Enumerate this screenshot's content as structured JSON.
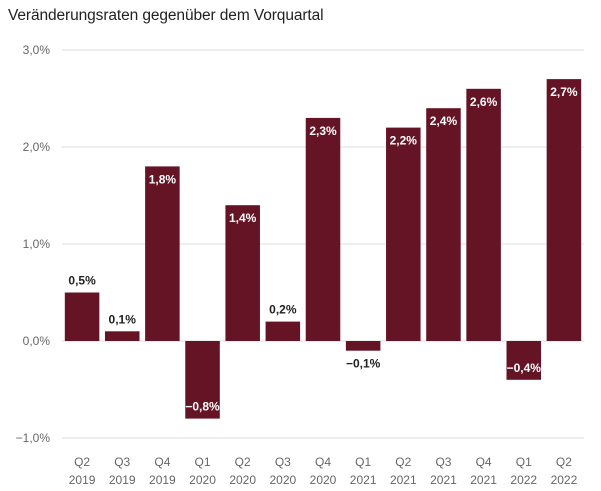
{
  "chart_data": {
    "type": "bar",
    "title": "Veränderungsraten gegenüber dem Vorquartal",
    "categories": [
      [
        "Q2",
        "2019"
      ],
      [
        "Q3",
        "2019"
      ],
      [
        "Q4",
        "2019"
      ],
      [
        "Q1",
        "2020"
      ],
      [
        "Q2",
        "2020"
      ],
      [
        "Q3",
        "2020"
      ],
      [
        "Q4",
        "2020"
      ],
      [
        "Q1",
        "2021"
      ],
      [
        "Q2",
        "2021"
      ],
      [
        "Q3",
        "2021"
      ],
      [
        "Q4",
        "2021"
      ],
      [
        "Q1",
        "2022"
      ],
      [
        "Q2",
        "2022"
      ]
    ],
    "values": [
      0.5,
      0.1,
      1.8,
      -0.8,
      1.4,
      0.2,
      2.3,
      -0.1,
      2.2,
      2.4,
      2.6,
      -0.4,
      2.7
    ],
    "value_labels": [
      "0,5%",
      "0,1%",
      "1,8%",
      "−0,8%",
      "1,4%",
      "0,2%",
      "2,3%",
      "−0,1%",
      "2,2%",
      "2,4%",
      "2,6%",
      "−0,4%",
      "2,7%"
    ],
    "label_inside": [
      false,
      false,
      true,
      true,
      true,
      false,
      true,
      false,
      true,
      true,
      true,
      true,
      true
    ],
    "ylim": [
      -1.0,
      3.0
    ],
    "yticks": [
      -1.0,
      0.0,
      1.0,
      2.0,
      3.0
    ],
    "ytick_labels": [
      "−1,0%",
      "0,0%",
      "1,0%",
      "2,0%",
      "3,0%"
    ],
    "xlabel": "",
    "ylabel": "",
    "grid": true,
    "colors": {
      "bar": "#651426",
      "grid": "#dddddd",
      "tick_text": "#666666",
      "label_inside": "#ffffff",
      "label_outside": "#222222"
    }
  }
}
